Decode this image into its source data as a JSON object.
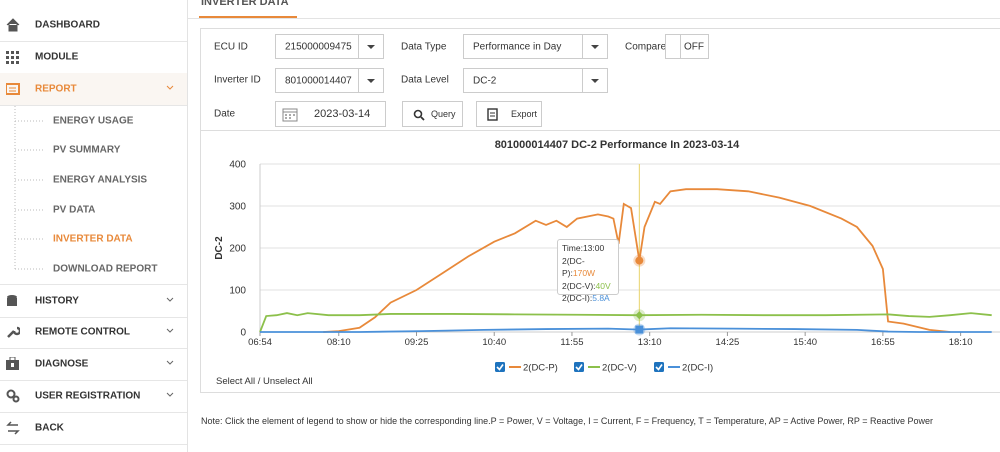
{
  "sidebar": {
    "items": [
      {
        "label": "DASHBOARD"
      },
      {
        "label": "MODULE"
      },
      {
        "label": "REPORT"
      },
      {
        "label": "HISTORY"
      },
      {
        "label": "REMOTE CONTROL"
      },
      {
        "label": "DIAGNOSE"
      },
      {
        "label": "USER REGISTRATION"
      },
      {
        "label": "BACK"
      }
    ],
    "sub_items": [
      "ENERGY USAGE",
      "PV SUMMARY",
      "ENERGY ANALYSIS",
      "PV DATA",
      "INVERTER DATA",
      "DOWNLOAD REPORT"
    ]
  },
  "page_title": "INVERTER DATA",
  "form": {
    "ecu_id": {
      "label": "ECU ID",
      "value": "215000009475"
    },
    "data_type": {
      "label": "Data Type",
      "value": "Performance in Day"
    },
    "compare": {
      "label": "Compare",
      "value": "OFF"
    },
    "inverter_id": {
      "label": "Inverter ID",
      "value": "801000014407"
    },
    "data_level": {
      "label": "Data Level",
      "value": "DC-2"
    },
    "date": {
      "label": "Date",
      "value": "2023-03-14"
    },
    "query": "Query",
    "export": "Export"
  },
  "chart": {
    "type": "line",
    "title": "801000014407 DC-2 Performance In 2023-03-14",
    "y_label": "DC-2",
    "xlim": [
      "06:54",
      "18:48"
    ],
    "xticks": [
      "06:54",
      "08:10",
      "09:25",
      "10:40",
      "11:55",
      "13:10",
      "14:25",
      "15:40",
      "16:55",
      "18:10"
    ],
    "ylim": [
      0,
      400
    ],
    "yticks": [
      0,
      100,
      200,
      300,
      400
    ],
    "grid": true,
    "series": [
      {
        "name": "2(DC-P)",
        "color": "#e8893a",
        "x": [
          "07:55",
          "08:10",
          "08:30",
          "08:45",
          "09:00",
          "09:25",
          "09:50",
          "10:15",
          "10:40",
          "11:00",
          "11:20",
          "11:30",
          "11:40",
          "11:50",
          "12:00",
          "12:10",
          "12:20",
          "12:30",
          "12:35",
          "12:40",
          "12:45",
          "12:52",
          "13:00",
          "13:05",
          "13:15",
          "13:20",
          "13:30",
          "13:45",
          "14:15",
          "14:45",
          "15:15",
          "15:45",
          "16:15",
          "16:30",
          "16:45",
          "16:55",
          "17:00",
          "17:15",
          "17:40",
          "18:00"
        ],
        "values": [
          0,
          2,
          10,
          35,
          70,
          100,
          140,
          180,
          215,
          235,
          265,
          255,
          265,
          250,
          270,
          275,
          280,
          275,
          270,
          210,
          305,
          295,
          170,
          250,
          310,
          305,
          335,
          340,
          340,
          335,
          320,
          300,
          270,
          250,
          205,
          150,
          25,
          20,
          5,
          0
        ]
      },
      {
        "name": "2(DC-V)",
        "color": "#8cc04b",
        "x": [
          "06:54",
          "07:00",
          "07:10",
          "07:20",
          "07:30",
          "07:40",
          "08:00",
          "08:30",
          "09:00",
          "10:00",
          "11:00",
          "12:00",
          "13:00",
          "14:00",
          "15:00",
          "16:00",
          "17:00",
          "17:20",
          "17:40",
          "18:00",
          "18:20",
          "18:40"
        ],
        "values": [
          0,
          38,
          40,
          45,
          40,
          45,
          40,
          40,
          43,
          43,
          42,
          41,
          40,
          41,
          40,
          40,
          42,
          38,
          36,
          40,
          45,
          40
        ]
      },
      {
        "name": "2(DC-I)",
        "color": "#4a90d9",
        "x": [
          "06:54",
          "08:30",
          "09:30",
          "10:30",
          "11:30",
          "12:30",
          "13:00",
          "13:30",
          "14:30",
          "15:30",
          "16:30",
          "17:00",
          "17:30",
          "18:40"
        ],
        "values": [
          0,
          0,
          2,
          5,
          7,
          8,
          5.8,
          9,
          8,
          7,
          5,
          1,
          0,
          0
        ]
      }
    ]
  },
  "tooltip": {
    "time_label": "Time:",
    "time": "13:00",
    "rows": [
      {
        "name": "2(DC-P):",
        "value": "170W"
      },
      {
        "name": "2(DC-V):",
        "value": "40V"
      },
      {
        "name": "2(DC-I):",
        "value": "5.8A"
      }
    ]
  },
  "select_all": "Select All / Unselect All",
  "note": "Note: Click the element of legend to show or hide the corresponding line.P = Power, V = Voltage, I = Current, F = Frequency, T = Temperature, AP = Active Power, RP = Reactive Power"
}
